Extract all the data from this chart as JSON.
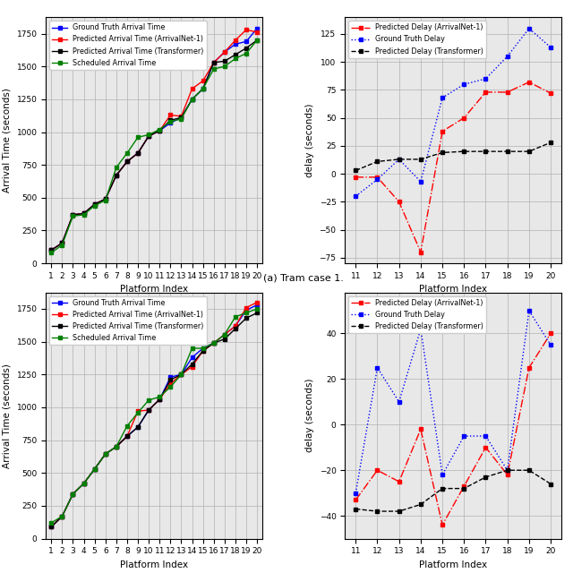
{
  "tram": {
    "arrival": {
      "x": [
        1,
        2,
        3,
        4,
        5,
        6,
        7,
        8,
        9,
        10,
        11,
        12,
        13,
        14,
        15,
        16,
        17,
        18,
        19,
        20
      ],
      "gt": [
        100,
        155,
        370,
        380,
        450,
        490,
        670,
        775,
        840,
        970,
        1010,
        1070,
        1110,
        1250,
        1330,
        1530,
        1610,
        1670,
        1690,
        1790
      ],
      "arrnet": [
        100,
        155,
        370,
        380,
        450,
        490,
        670,
        775,
        840,
        970,
        1010,
        1130,
        1120,
        1330,
        1390,
        1530,
        1610,
        1700,
        1780,
        1760
      ],
      "transformer": [
        100,
        155,
        370,
        380,
        450,
        490,
        670,
        775,
        840,
        970,
        1010,
        1090,
        1110,
        1250,
        1330,
        1530,
        1540,
        1590,
        1640,
        1700
      ],
      "scheduled": [
        80,
        140,
        360,
        370,
        440,
        480,
        730,
        840,
        960,
        980,
        1020,
        1080,
        1100,
        1250,
        1330,
        1480,
        1500,
        1560,
        1600,
        1700
      ],
      "ylabel": "Arrival Time (seconds)",
      "xlabel": "Platform Index",
      "ylim": [
        0,
        1875
      ]
    },
    "delay": {
      "x": [
        11,
        12,
        13,
        14,
        15,
        16,
        17,
        18,
        19,
        20
      ],
      "arrnet": [
        -3,
        -3,
        -25,
        -70,
        38,
        50,
        73,
        73,
        82,
        72
      ],
      "gt": [
        -20,
        -5,
        13,
        -7,
        68,
        80,
        85,
        105,
        130,
        113
      ],
      "transformer": [
        3,
        11,
        13,
        13,
        19,
        20,
        20,
        20,
        20,
        28
      ],
      "ylabel": "delay (seconds)",
      "xlabel": "Platform Index",
      "ylim": [
        -80,
        140
      ]
    }
  },
  "bus": {
    "arrival": {
      "x": [
        1,
        2,
        3,
        4,
        5,
        6,
        7,
        8,
        9,
        10,
        11,
        12,
        13,
        14,
        15,
        16,
        17,
        18,
        19,
        20
      ],
      "gt": [
        90,
        170,
        340,
        420,
        530,
        645,
        700,
        780,
        850,
        980,
        1060,
        1230,
        1250,
        1380,
        1450,
        1490,
        1555,
        1620,
        1740,
        1780
      ],
      "arrnet": [
        90,
        170,
        340,
        420,
        530,
        645,
        700,
        780,
        970,
        980,
        1060,
        1180,
        1250,
        1310,
        1430,
        1490,
        1555,
        1620,
        1760,
        1800
      ],
      "transformer": [
        90,
        170,
        340,
        420,
        530,
        645,
        700,
        780,
        850,
        980,
        1060,
        1210,
        1250,
        1330,
        1430,
        1490,
        1520,
        1600,
        1680,
        1720
      ],
      "scheduled": [
        120,
        170,
        340,
        420,
        530,
        645,
        700,
        858,
        960,
        1055,
        1080,
        1155,
        1250,
        1450,
        1450,
        1490,
        1555,
        1690,
        1720,
        1750
      ],
      "ylabel": "Arrival Time (seconds)",
      "xlabel": "Platform Index",
      "ylim": [
        0,
        1875
      ]
    },
    "delay": {
      "x": [
        11,
        12,
        13,
        14,
        15,
        16,
        17,
        18,
        19,
        20
      ],
      "arrnet": [
        -33,
        -20,
        -25,
        -2,
        -44,
        -27,
        -10,
        -22,
        25,
        40
      ],
      "gt": [
        -30,
        25,
        10,
        42,
        -22,
        -5,
        -5,
        -20,
        50,
        35
      ],
      "transformer": [
        -37,
        -38,
        -38,
        -35,
        -28,
        -28,
        -23,
        -20,
        -20,
        -26
      ],
      "ylabel": "delay (seconds)",
      "xlabel": "Platform Index",
      "ylim": [
        -50,
        58
      ]
    }
  },
  "caption": "(a) Tram case 1.",
  "legend_arrival": {
    "gt": "Ground Truth Arrival Time",
    "arrnet": "Predicted Arrival Time (ArrivalNet-1)",
    "transformer": "Predicted Arrival Time (Transformer)",
    "scheduled": "Scheduled Arrival Time"
  },
  "legend_delay": {
    "arrnet": "Predicted Delay (ArrivalNet-1)",
    "gt": "Ground Truth Delay",
    "transformer": "Predicted Delay (Transformer)"
  },
  "colors": {
    "gt": "#0000ff",
    "arrnet": "#ff0000",
    "transformer": "#000000",
    "scheduled": "#008000"
  },
  "bg_color": "#e8e8e8"
}
